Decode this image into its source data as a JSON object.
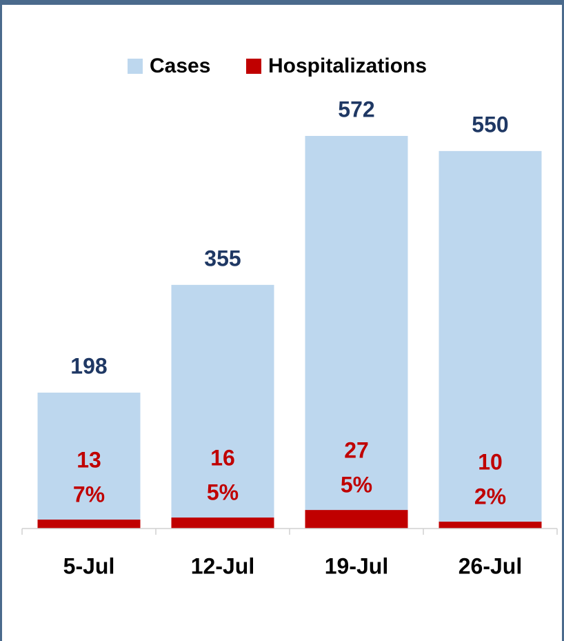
{
  "chart_data": {
    "type": "bar",
    "categories": [
      "5-Jul",
      "12-Jul",
      "19-Jul",
      "26-Jul"
    ],
    "series": [
      {
        "name": "Cases",
        "color": "#bdd7ee",
        "values": [
          198,
          355,
          572,
          550
        ]
      },
      {
        "name": "Hospitalizations",
        "color": "#c00000",
        "values": [
          13,
          16,
          27,
          10
        ]
      }
    ],
    "share_labels": [
      "7%",
      "5%",
      "5%",
      "2%"
    ]
  }
}
